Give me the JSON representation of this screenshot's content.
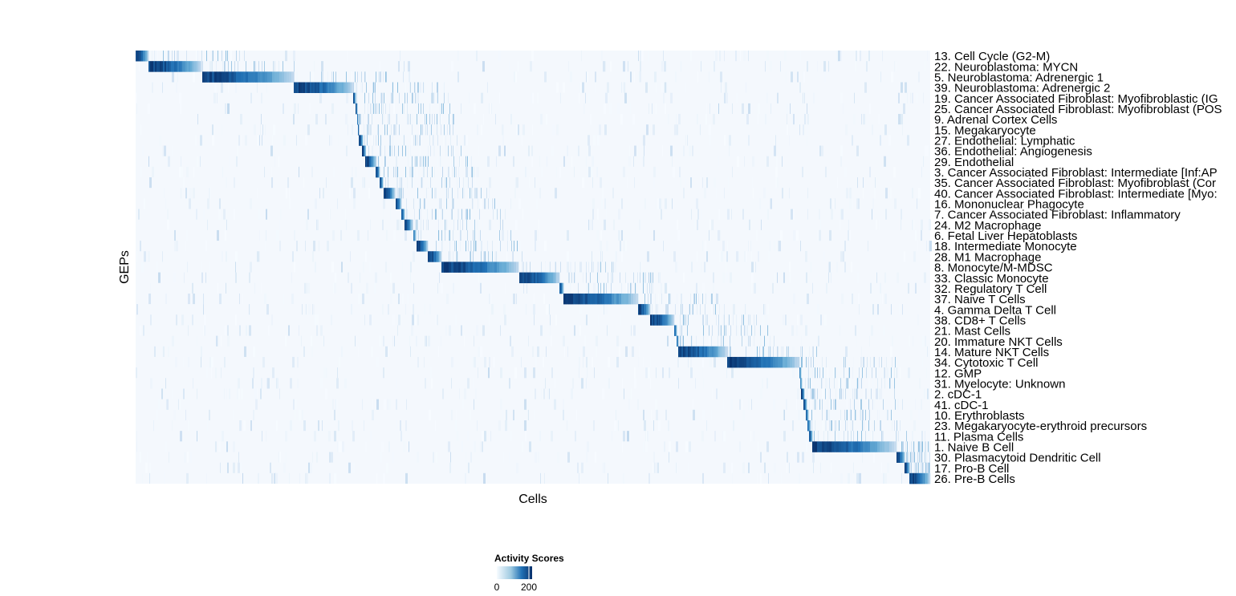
{
  "chart_data": {
    "type": "heatmap",
    "xlabel": "Cells",
    "ylabel": "GEPs",
    "n_cells": 990,
    "colorscale": {
      "title": "Activity Scores",
      "low": "#f7fbff",
      "high": "#08306b",
      "range": [
        0,
        220
      ],
      "ticks": [
        0,
        200
      ]
    },
    "rows": [
      {
        "label": "13. Cell Cycle (G2-M)",
        "start": 0,
        "end": 16,
        "peak": 220
      },
      {
        "label": "22. Neuroblastoma: MYCN",
        "start": 16,
        "end": 81,
        "peak": 220
      },
      {
        "label": "5. Neuroblastoma: Adrenergic 1",
        "start": 83,
        "end": 196,
        "peak": 220
      },
      {
        "label": "39. Neuroblastoma: Adrenergic 2",
        "start": 197,
        "end": 271,
        "peak": 220
      },
      {
        "label": "19. Cancer Associated Fibroblast: Myofibroblastic (IG",
        "start": 271,
        "end": 274,
        "peak": 200
      },
      {
        "label": "25. Cancer Associated Fibroblast: Myofibroblast (POS",
        "start": 274,
        "end": 276,
        "peak": 200
      },
      {
        "label": "9. Adrenal Cortex Cells",
        "start": 276,
        "end": 277,
        "peak": 180
      },
      {
        "label": "15. Megakaryocyte",
        "start": 277,
        "end": 278,
        "peak": 180
      },
      {
        "label": "27. Endothelial: Lymphatic",
        "start": 278,
        "end": 283,
        "peak": 220
      },
      {
        "label": "36. Endothelial: Angiogenesis",
        "start": 282,
        "end": 286,
        "peak": 220
      },
      {
        "label": "29. Endothelial",
        "start": 286,
        "end": 299,
        "peak": 220
      },
      {
        "label": "3. Cancer Associated Fibroblast: Intermediate [Inf:AP",
        "start": 299,
        "end": 304,
        "peak": 200
      },
      {
        "label": "35. Cancer Associated Fibroblast: Myofibroblast (Cor",
        "start": 304,
        "end": 308,
        "peak": 200
      },
      {
        "label": "40. Cancer Associated Fibroblast: Intermediate [Myo:",
        "start": 309,
        "end": 323,
        "peak": 220
      },
      {
        "label": "16. Mononuclear Phagocyte",
        "start": 324,
        "end": 331,
        "peak": 200
      },
      {
        "label": "7. Cancer Associated Fibroblast: Inflammatory",
        "start": 331,
        "end": 335,
        "peak": 200
      },
      {
        "label": "24. M2 Macrophage",
        "start": 335,
        "end": 344,
        "peak": 220
      },
      {
        "label": "6. Fetal Liver Hepatoblasts",
        "start": 346,
        "end": 349,
        "peak": 150
      },
      {
        "label": "18. Intermediate Monocyte",
        "start": 350,
        "end": 364,
        "peak": 220
      },
      {
        "label": "28. M1 Macrophage",
        "start": 364,
        "end": 381,
        "peak": 220
      },
      {
        "label": "8. Monocyte/M-MDSC",
        "start": 381,
        "end": 477,
        "peak": 220
      },
      {
        "label": "33. Classic Monocyte",
        "start": 478,
        "end": 528,
        "peak": 220
      },
      {
        "label": "32. Regulatory T Cell",
        "start": 528,
        "end": 533,
        "peak": 200
      },
      {
        "label": "37. Naive T Cells",
        "start": 533,
        "end": 626,
        "peak": 220
      },
      {
        "label": "4. Gamma Delta T Cell",
        "start": 626,
        "end": 641,
        "peak": 220
      },
      {
        "label": "38. CD8+ T Cells",
        "start": 641,
        "end": 671,
        "peak": 220
      },
      {
        "label": "21. Mast Cells",
        "start": 671,
        "end": 674,
        "peak": 180
      },
      {
        "label": "20. Immature NKT Cells",
        "start": 674,
        "end": 676,
        "peak": 180
      },
      {
        "label": "14. Mature NKT Cells",
        "start": 676,
        "end": 737,
        "peak": 220
      },
      {
        "label": "34. Cytotoxic T Cell",
        "start": 737,
        "end": 827,
        "peak": 220
      },
      {
        "label": "12. GMP",
        "start": 827,
        "end": 829,
        "peak": 150
      },
      {
        "label": "31. Myelocyte: Unknown",
        "start": 828,
        "end": 830,
        "peak": 150
      },
      {
        "label": "2. cDC-1",
        "start": 829,
        "end": 833,
        "peak": 220
      },
      {
        "label": "41. cDC-1",
        "start": 832,
        "end": 836,
        "peak": 200
      },
      {
        "label": "10. Erythroblasts",
        "start": 835,
        "end": 838,
        "peak": 180
      },
      {
        "label": "23. Megakaryocyte-erythroid precursors",
        "start": 837,
        "end": 840,
        "peak": 180
      },
      {
        "label": "11. Plasma Cells",
        "start": 839,
        "end": 843,
        "peak": 200
      },
      {
        "label": "1. Naive B Cell",
        "start": 843,
        "end": 946,
        "peak": 220
      },
      {
        "label": "30. Plasmacytoid Dendritic Cell",
        "start": 948,
        "end": 958,
        "peak": 220
      },
      {
        "label": "17. Pro-B Cell",
        "start": 958,
        "end": 964,
        "peak": 220
      },
      {
        "label": "26. Pre-B Cells",
        "start": 964,
        "end": 990,
        "peak": 220
      }
    ]
  }
}
